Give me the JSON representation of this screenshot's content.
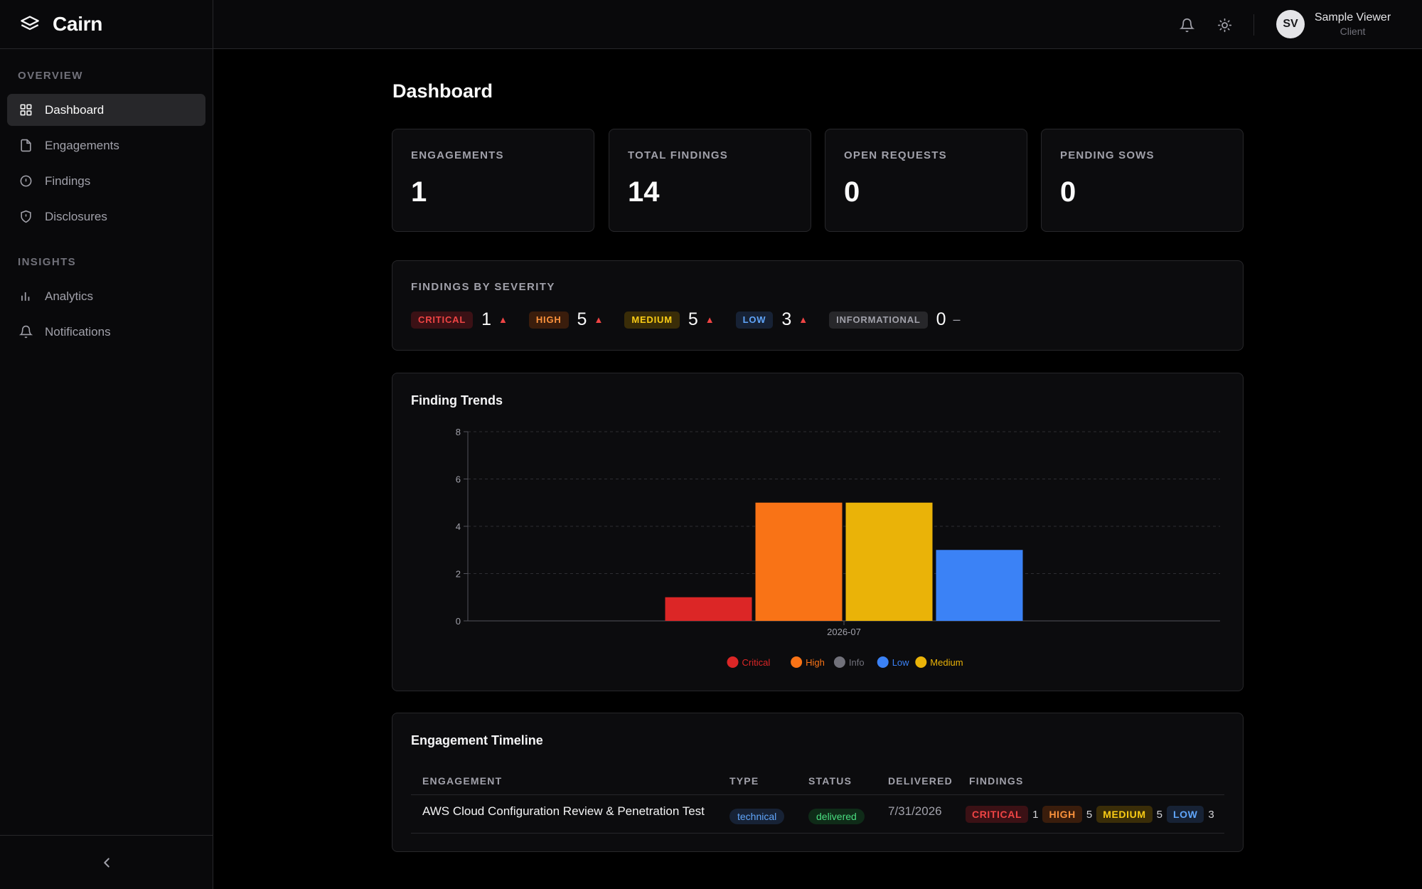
{
  "app": {
    "name": "Cairn"
  },
  "sidebar": {
    "sections": [
      {
        "title": "OVERVIEW",
        "items": [
          {
            "label": "Dashboard",
            "icon": "grid-icon",
            "active": true
          },
          {
            "label": "Engagements",
            "icon": "file-icon"
          },
          {
            "label": "Findings",
            "icon": "alert-circle-icon"
          },
          {
            "label": "Disclosures",
            "icon": "shield-icon"
          }
        ]
      },
      {
        "title": "INSIGHTS",
        "items": [
          {
            "label": "Analytics",
            "icon": "bar-chart-icon"
          },
          {
            "label": "Notifications",
            "icon": "bell-icon"
          }
        ]
      }
    ]
  },
  "topbar": {
    "user_initials": "SV",
    "user_name": "Sample Viewer",
    "user_role": "Client"
  },
  "page": {
    "title": "Dashboard"
  },
  "stats": [
    {
      "label": "ENGAGEMENTS",
      "value": "1"
    },
    {
      "label": "TOTAL FINDINGS",
      "value": "14"
    },
    {
      "label": "OPEN REQUESTS",
      "value": "0"
    },
    {
      "label": "PENDING SOWS",
      "value": "0"
    }
  ],
  "severity": {
    "title": "FINDINGS BY SEVERITY",
    "items": [
      {
        "label": "CRITICAL",
        "count": "1",
        "trend": "▲"
      },
      {
        "label": "HIGH",
        "count": "5",
        "trend": "▲"
      },
      {
        "label": "MEDIUM",
        "count": "5",
        "trend": "▲"
      },
      {
        "label": "LOW",
        "count": "3",
        "trend": "▲"
      },
      {
        "label": "INFORMATIONAL",
        "count": "0",
        "trend": "–"
      }
    ]
  },
  "trends": {
    "title": "Finding Trends"
  },
  "chart_data": {
    "type": "bar",
    "title": "Finding Trends",
    "categories": [
      "2026-07"
    ],
    "series": [
      {
        "name": "Critical",
        "values": [
          1
        ],
        "color": "#dc2626"
      },
      {
        "name": "High",
        "values": [
          5
        ],
        "color": "#f97316"
      },
      {
        "name": "Info",
        "values": [
          0
        ],
        "color": "#71717a"
      },
      {
        "name": "Medium",
        "values": [
          5
        ],
        "color": "#eab308"
      },
      {
        "name": "Low",
        "values": [
          3
        ],
        "color": "#3b82f6"
      }
    ],
    "legend": [
      "Critical",
      "High",
      "Info",
      "Low",
      "Medium"
    ],
    "legend_colors": [
      "#dc2626",
      "#f97316",
      "#71717a",
      "#3b82f6",
      "#eab308"
    ],
    "yticks": [
      "0",
      "2",
      "4",
      "6",
      "8"
    ],
    "ylim": [
      0,
      8
    ],
    "grid": true,
    "legend_position": "bottom"
  },
  "timeline": {
    "title": "Engagement Timeline",
    "headers": {
      "engagement": "ENGAGEMENT",
      "type": "TYPE",
      "status": "STATUS",
      "delivered": "DELIVERED",
      "findings": "FINDINGS"
    },
    "rows": [
      {
        "engagement": "AWS Cloud Configuration Review & Penetration Test",
        "type": "technical",
        "status": "delivered",
        "delivered": "7/31/2026",
        "findings": [
          {
            "label": "CRITICAL",
            "count": "1"
          },
          {
            "label": "HIGH",
            "count": "5"
          },
          {
            "label": "MEDIUM",
            "count": "5"
          },
          {
            "label": "LOW",
            "count": "3"
          }
        ]
      }
    ]
  }
}
